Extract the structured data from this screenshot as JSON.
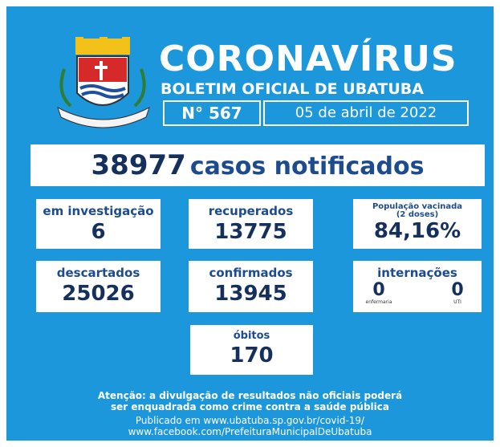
{
  "header": {
    "title": "CORONAVÍRUS",
    "subtitle": "BOLETIM OFICIAL DE UBATUBA",
    "number": "N° 567",
    "date": "05 de abril de 2022"
  },
  "total": {
    "value": "38977",
    "label": "casos notificados"
  },
  "cards": [
    {
      "label": "em investigação",
      "value": "6"
    },
    {
      "label": "recuperados",
      "value": "13775"
    },
    {
      "label": [
        "População vacinada",
        "(2 doses)"
      ],
      "value": "84,16%"
    },
    {
      "label": "descartados",
      "value": "25026"
    },
    {
      "label": "confirmados",
      "value": "13945"
    },
    {
      "label": "internações",
      "items": [
        {
          "value": "0",
          "label": "enfermaria"
        },
        {
          "value": "0",
          "label": "UTI"
        }
      ]
    },
    {
      "label": "óbitos",
      "value": "170"
    }
  ],
  "footer": {
    "notice": [
      "Atenção: a divulgação de resultados não oficiais poderá",
      "ser enquadrada como crime contra a saúde pública"
    ],
    "published": [
      "Publicado em www.ubatuba.sp.gov.br/covid-19/",
      "www.facebook.com/PrefeituraMunicipalDeUbatuba"
    ]
  }
}
